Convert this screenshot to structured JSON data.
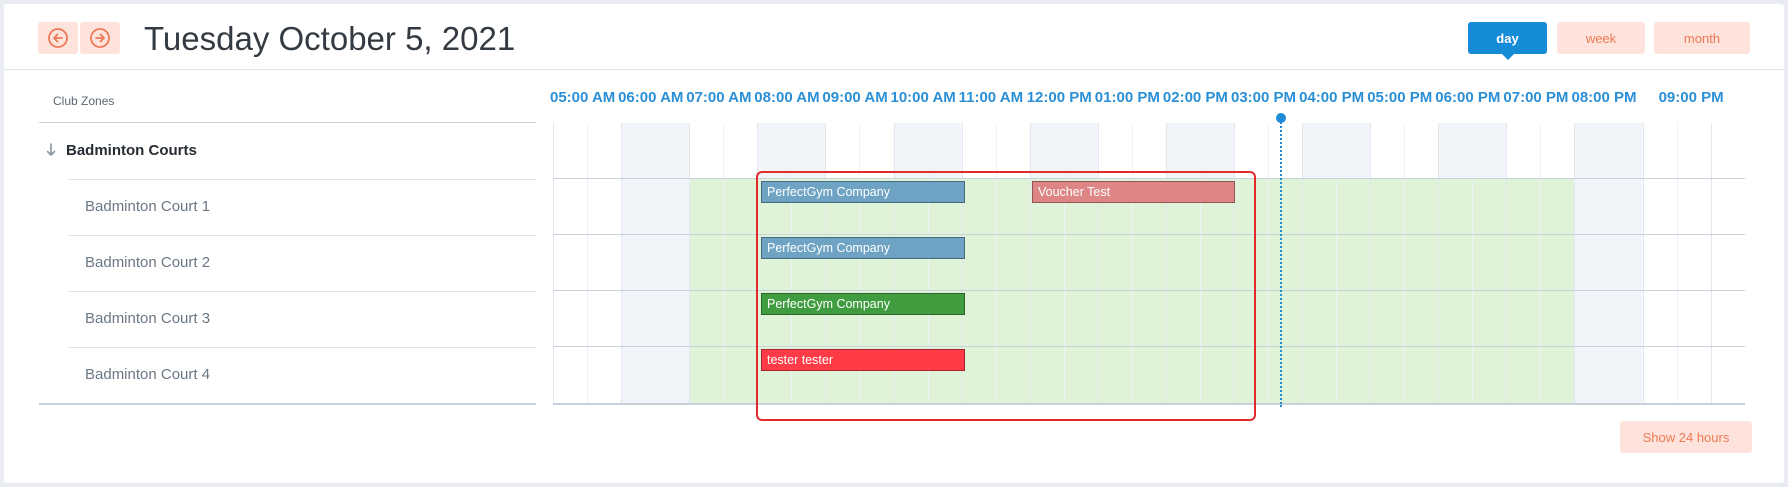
{
  "header": {
    "date_title": "Tuesday October 5, 2021",
    "prev_icon": "arrow-left-circle-icon",
    "next_icon": "arrow-right-circle-icon",
    "views": [
      {
        "label": "day",
        "active": true
      },
      {
        "label": "week",
        "active": false
      },
      {
        "label": "month",
        "active": false
      }
    ]
  },
  "zones_label": "Club Zones",
  "hours": [
    "05:00 AM",
    "06:00 AM",
    "07:00 AM",
    "08:00 AM",
    "09:00 AM",
    "10:00 AM",
    "11:00 AM",
    "12:00 PM",
    "01:00 PM",
    "02:00 PM",
    "03:00 PM",
    "04:00 PM",
    "05:00 PM",
    "06:00 PM",
    "07:00 PM",
    "08:00 PM",
    "09:00 PM"
  ],
  "groups": [
    {
      "name": "Badminton Courts",
      "expand_icon": "arrow-down-icon",
      "courts": [
        "Badminton Court 1",
        "Badminton Court 2",
        "Badminton Court 3",
        "Badminton Court 4"
      ]
    }
  ],
  "events": [
    {
      "court": 0,
      "title": "PerfectGym Company",
      "color": "#6fa3c3"
    },
    {
      "court": 0,
      "title": "Voucher Test",
      "color": "#de8585"
    },
    {
      "court": 1,
      "title": "PerfectGym Company",
      "color": "#6fa3c3"
    },
    {
      "court": 2,
      "title": "PerfectGym Company",
      "color": "#3f9d3f"
    },
    {
      "court": 3,
      "title": "tester tester",
      "color": "#ff3b47"
    }
  ],
  "colors": {
    "accent": "#168bd8",
    "soft_button": "#fde3dc",
    "soft_button_text": "#f07a55",
    "available": "#dff3d9",
    "highlight": "#e02b2b"
  },
  "show_24_label": "Show 24 hours"
}
